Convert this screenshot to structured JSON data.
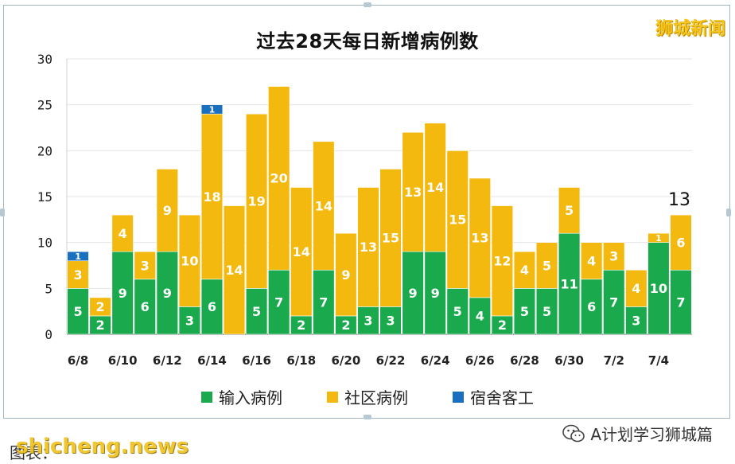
{
  "watermark_top": "狮城新闻",
  "caption": "图表：",
  "site_watermark": "shicheng.news",
  "wechat_account": "A计划学习狮城篇",
  "colors": {
    "imported": "#1aaa4d",
    "community": "#f4b90e",
    "dormitory": "#1a6fbf",
    "axis": "#555555"
  },
  "chart_data": {
    "type": "bar",
    "stacked": true,
    "title": "过去28天每日新增病例数",
    "categories": [
      "6/8",
      "6/9",
      "6/10",
      "6/11",
      "6/12",
      "6/13",
      "6/14",
      "6/15",
      "6/16",
      "6/17",
      "6/18",
      "6/19",
      "6/20",
      "6/21",
      "6/22",
      "6/23",
      "6/24",
      "6/25",
      "6/26",
      "6/27",
      "6/28",
      "6/29",
      "6/30",
      "7/1",
      "7/2",
      "7/3",
      "7/4",
      "7/5"
    ],
    "tick_labels": [
      "6/8",
      "",
      "6/10",
      "",
      "6/12",
      "",
      "6/14",
      "",
      "6/16",
      "",
      "6/18",
      "",
      "6/20",
      "",
      "6/22",
      "",
      "6/24",
      "",
      "6/26",
      "",
      "6/28",
      "",
      "6/30",
      "",
      "7/2",
      "",
      "7/4",
      ""
    ],
    "ylim": [
      0,
      30
    ],
    "yticks": [
      0,
      5,
      10,
      15,
      20,
      25,
      30
    ],
    "series": [
      {
        "name": "输入病例",
        "color": "#1aaa4d",
        "values": [
          5,
          2,
          9,
          6,
          9,
          3,
          6,
          0,
          5,
          7,
          2,
          7,
          2,
          3,
          3,
          9,
          9,
          5,
          4,
          2,
          5,
          5,
          11,
          6,
          7,
          3,
          10,
          7
        ]
      },
      {
        "name": "社区病例",
        "color": "#f4b90e",
        "values": [
          3,
          2,
          4,
          3,
          9,
          10,
          18,
          14,
          19,
          20,
          14,
          14,
          9,
          13,
          15,
          13,
          14,
          15,
          13,
          12,
          4,
          5,
          5,
          4,
          3,
          4,
          1,
          6
        ]
      },
      {
        "name": "宿舍客工",
        "color": "#1a6fbf",
        "values": [
          1,
          0,
          0,
          0,
          0,
          0,
          1,
          0,
          0,
          0,
          0,
          0,
          0,
          0,
          0,
          0,
          0,
          0,
          0,
          0,
          0,
          0,
          0,
          0,
          0,
          0,
          0,
          0
        ]
      }
    ],
    "annotations": [
      {
        "category": "7/5",
        "text": "13"
      }
    ],
    "legend_position": "bottom"
  }
}
